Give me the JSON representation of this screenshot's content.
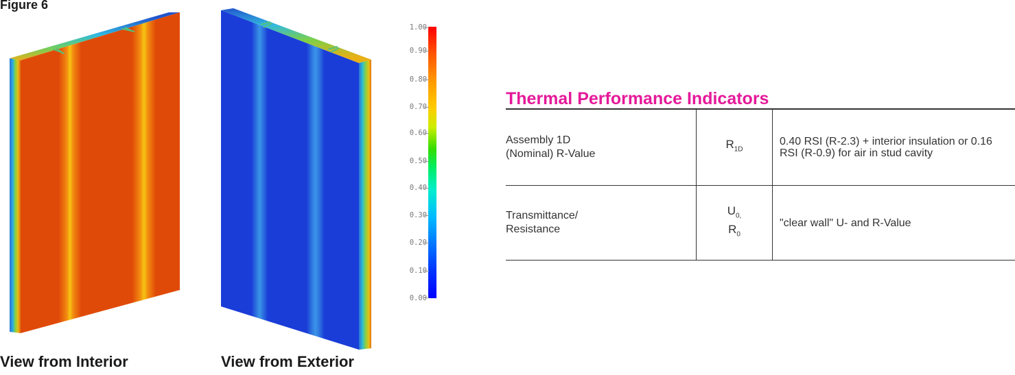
{
  "figure_label": "Figure 6",
  "views": {
    "interior_caption": "View from Interior",
    "exterior_caption": "View from Exterior"
  },
  "color_scale": {
    "ticks": [
      "1.00",
      "0.90",
      "0.80",
      "0.70",
      "0.60",
      "0.50",
      "0.40",
      "0.30",
      "0.20",
      "0.10",
      "0.00"
    ],
    "colors": [
      "#ff0000",
      "#ff9900",
      "#ffcc00",
      "#33dd00",
      "#00eecc",
      "#0077ff",
      "#0000ff"
    ]
  },
  "section_title": "Thermal Performance Indicators",
  "rows": [
    {
      "label_line1": "Assembly 1D",
      "label_line2": "(Nominal) R-Value",
      "symbol_main": "R",
      "symbol_sub": "1D",
      "description": "0.40 RSI (R-2.3) + interior insulation or 0.16 RSI (R-0.9) for air in stud cavity"
    },
    {
      "label_line1": "Transmittance/",
      "label_line2": "Resistance",
      "symbol_u": "U",
      "symbol_u_sub": "0,",
      "symbol_r": "R",
      "symbol_r_sub": "0",
      "description": "\"clear wall\" U- and R-Value"
    }
  ]
}
